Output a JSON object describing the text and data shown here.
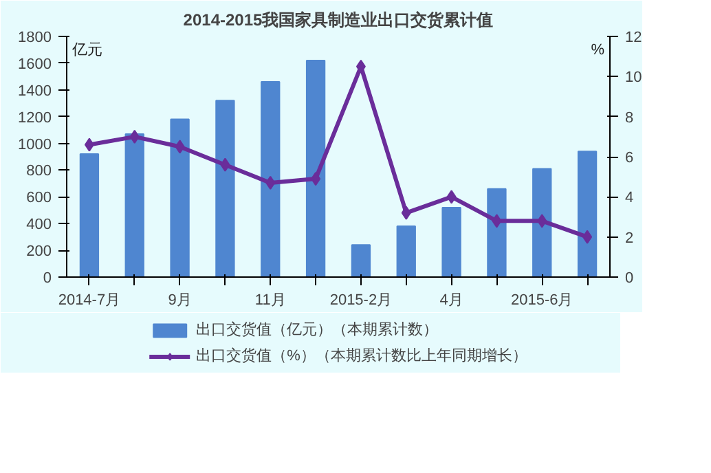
{
  "chart_data": {
    "type": "bar",
    "title": "2014-2015我国家具制造业出口交货累计值",
    "ylabel": "亿元",
    "y2label": "%",
    "categories": [
      "2014-7月",
      null,
      "9月",
      null,
      "11月",
      null,
      "2015-2月",
      null,
      "4月",
      null,
      "2015-6月",
      null
    ],
    "series": [
      {
        "name": "出口交货值（亿元）（本期累计数）",
        "type": "bar",
        "color": "#4f86d0",
        "values": [
          920,
          1070,
          1180,
          1320,
          1460,
          1620,
          240,
          380,
          520,
          660,
          810,
          940
        ]
      },
      {
        "name": "出口交货值（%）（本期累计数比上年同期增长）",
        "type": "line",
        "axis": "y2",
        "color": "#6a2d9a",
        "marker": "diamond",
        "values": [
          6.6,
          7.0,
          6.5,
          5.6,
          4.7,
          4.9,
          10.5,
          3.2,
          4.0,
          2.8,
          2.8,
          2.0
        ]
      }
    ],
    "ylim": [
      0,
      1800
    ],
    "yticks": [
      0,
      200,
      400,
      600,
      800,
      1000,
      1200,
      1400,
      1600,
      1800
    ],
    "y2lim": [
      0,
      12
    ],
    "y2ticks": [
      0,
      2,
      4,
      6,
      8,
      10,
      12
    ],
    "grid": false,
    "legend": "bottom"
  }
}
